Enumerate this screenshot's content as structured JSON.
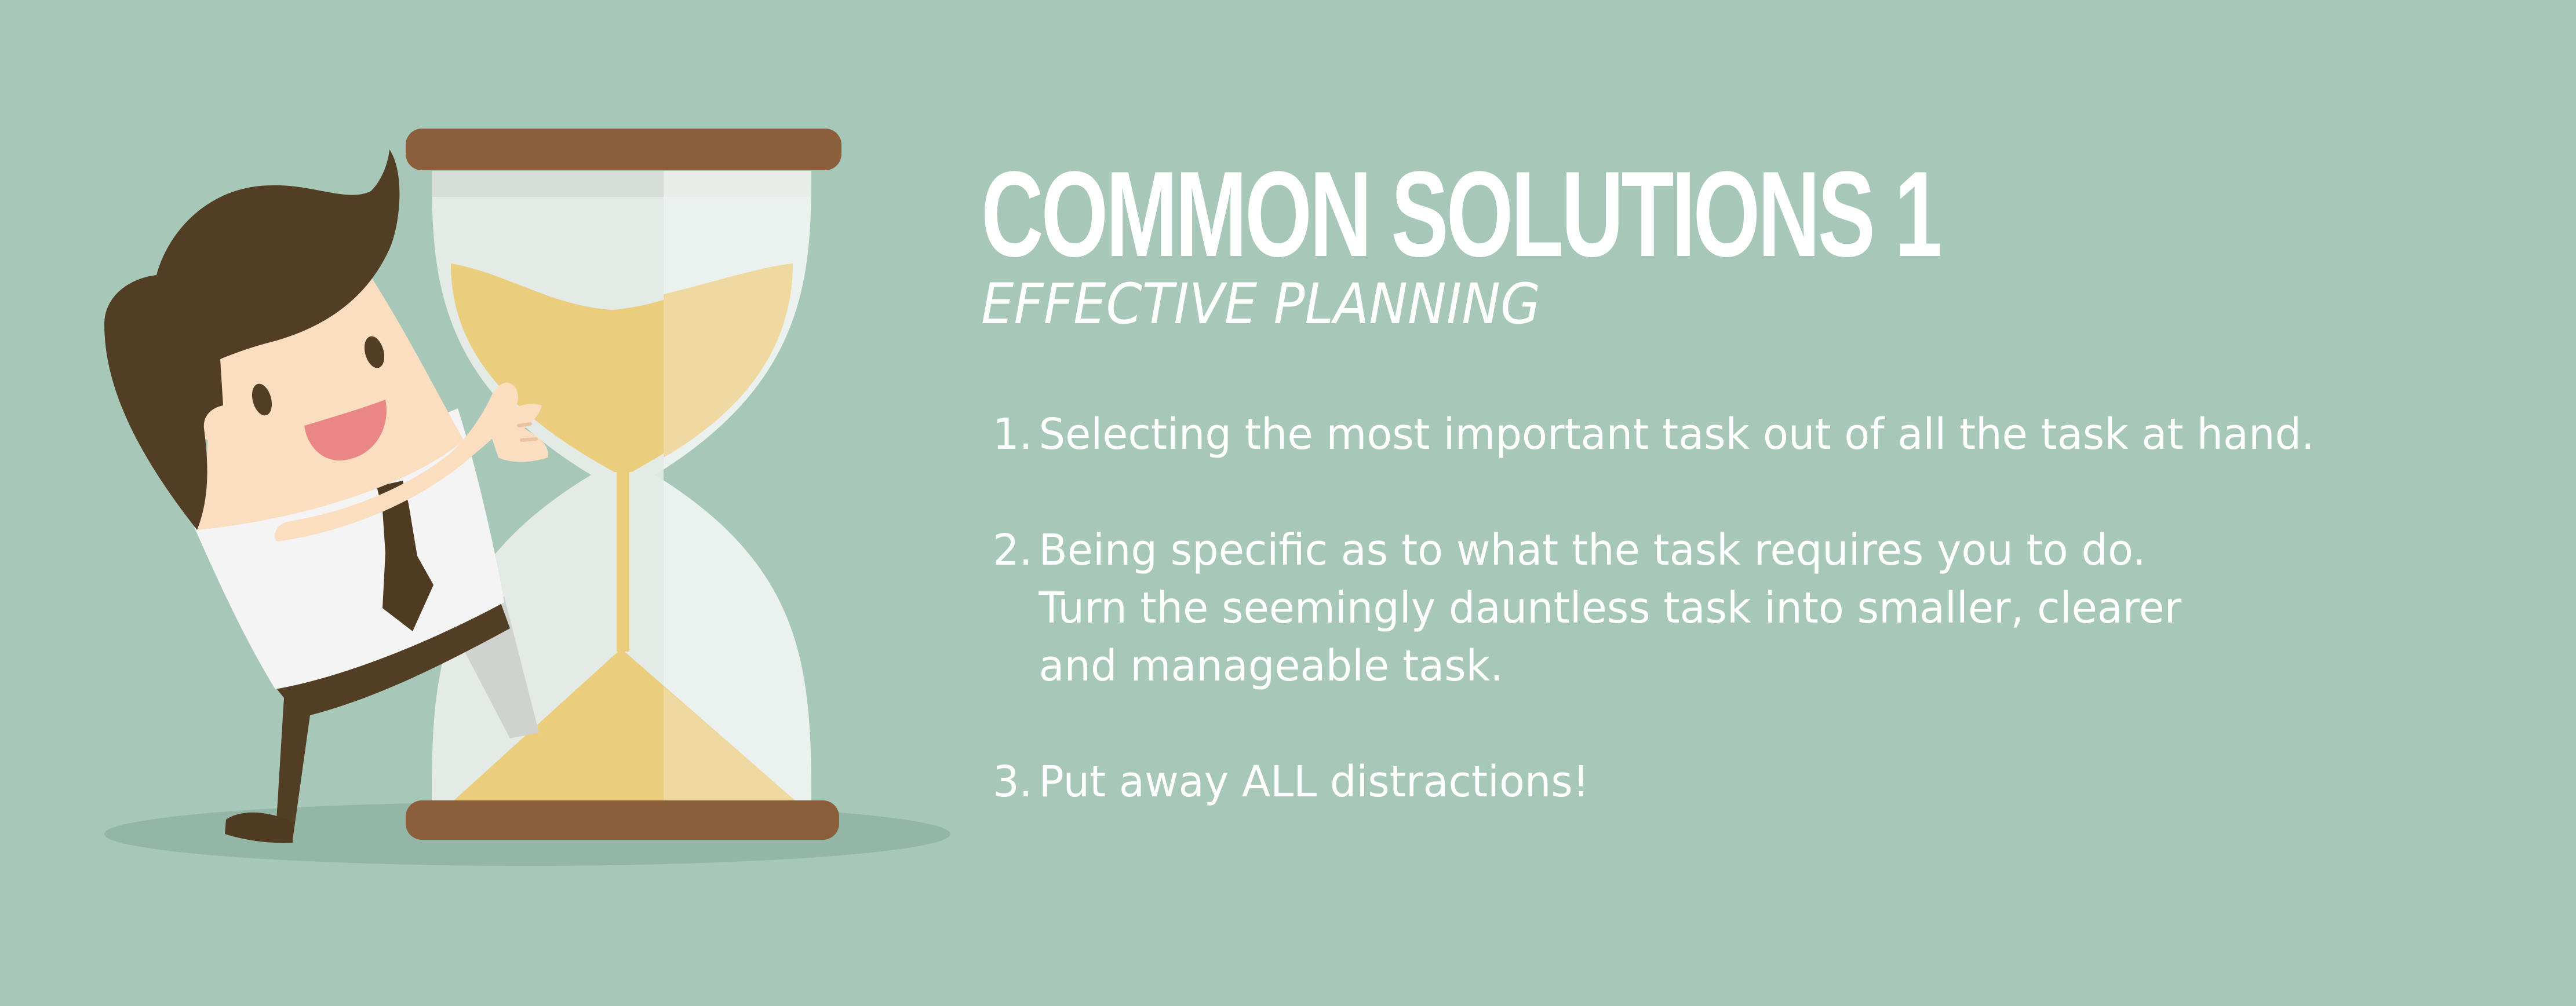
{
  "slide": {
    "title": "COMMON SOLUTIONS 1",
    "subtitle": "EFFECTIVE PLANNING",
    "items": [
      {
        "number": "1.",
        "lines": [
          "Selecting the most important task out of all the task at hand."
        ]
      },
      {
        "number": "2.",
        "lines": [
          "Being specific as to what the task requires you to do.",
          "Turn the seemingly dauntless task into smaller, clearer",
          "and manageable task."
        ]
      },
      {
        "number": "3.",
        "lines": [
          "Put away ALL distractions!"
        ]
      }
    ]
  },
  "illustration": {
    "subject": "businessman-hugging-hourglass",
    "colors": {
      "background": "#a7c8b9",
      "shadow": "#94b6a6",
      "hourglass_frame": "#8b5e3c",
      "hourglass_glass": "#e4ebe7",
      "sand": "#ebcd7e",
      "hair": "#523d25",
      "skin": "#fbddc0",
      "shirt": "#f4f4f4",
      "tie": "#4f3a22",
      "mouth": "#e98787"
    }
  }
}
